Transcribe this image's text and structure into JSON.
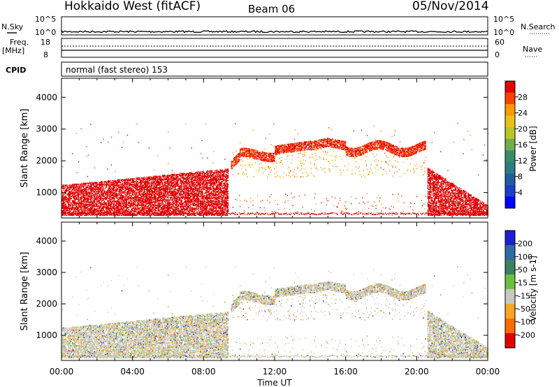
{
  "header": {
    "title": "Hokkaido West (fitACF)",
    "beam": "Beam 06",
    "date": "05/Nov/2014"
  },
  "status_panel": {
    "nsky_label": "N.Sky",
    "nsearch_label": "N.Search",
    "freq_label_1": "Freq.",
    "freq_label_2": "[MHz]",
    "nave_label": "Nave",
    "cpid_label": "CPID",
    "cpid_text": "normal (fast stereo) 153",
    "noise_ticks": [
      "10^5",
      "10^0"
    ],
    "noise_right_ticks": [
      "10^5",
      "10^0"
    ],
    "freq_ticks": [
      "18",
      "8"
    ],
    "nave_ticks": [
      "60",
      "0"
    ]
  },
  "chart_data": [
    {
      "type": "heatmap",
      "name": "power",
      "ylabel": "Slant Range [km]",
      "xlabel": "",
      "xlim": [
        0,
        24
      ],
      "ylim": [
        200,
        4600
      ],
      "yticks": [
        1000,
        2000,
        3000,
        4000
      ],
      "colorbar": {
        "label": "Power [dB]",
        "ticks": [
          "28",
          "24",
          "20",
          "16",
          "12",
          "8",
          "4"
        ],
        "colors": [
          "#e00000",
          "#ff4000",
          "#ff9900",
          "#e8c21a",
          "#b9c626",
          "#6fae4a",
          "#3c8a6e",
          "#2b7f7f",
          "#1e5fa0",
          "#1a3fc8",
          "#0000ff"
        ]
      },
      "features": [
        {
          "desc": "E/near range band",
          "time": [
            0,
            9.4
          ],
          "range": [
            300,
            1600
          ],
          "level": "high"
        },
        {
          "desc": "F region trace",
          "time": [
            9.6,
            20.5
          ],
          "range": [
            2100,
            2700
          ],
          "level": "high"
        },
        {
          "desc": "evening band",
          "time": [
            20.5,
            24
          ],
          "range": [
            400,
            1800
          ],
          "level": "high"
        }
      ]
    },
    {
      "type": "heatmap",
      "name": "velocity",
      "ylabel": "Slant Range [km]",
      "xlabel": "Time UT",
      "xlim": [
        0,
        24
      ],
      "ylim": [
        200,
        4600
      ],
      "yticks": [
        1000,
        2000,
        3000,
        4000
      ],
      "xticks": [
        "00:00",
        "04:00",
        "08:00",
        "12:00",
        "16:00",
        "20:00",
        "00:00"
      ],
      "colorbar": {
        "label": "Velocity [m s-1]",
        "ticks": [
          "200",
          "100",
          "50",
          "15",
          "-15",
          "-50",
          "-100",
          "-200"
        ],
        "colors": [
          "#1f1fd0",
          "#2e6aa8",
          "#3d7f5f",
          "#6fbf3f",
          "#c8c8c0",
          "#f5a623",
          "#ff6a00",
          "#e00000"
        ]
      }
    }
  ]
}
